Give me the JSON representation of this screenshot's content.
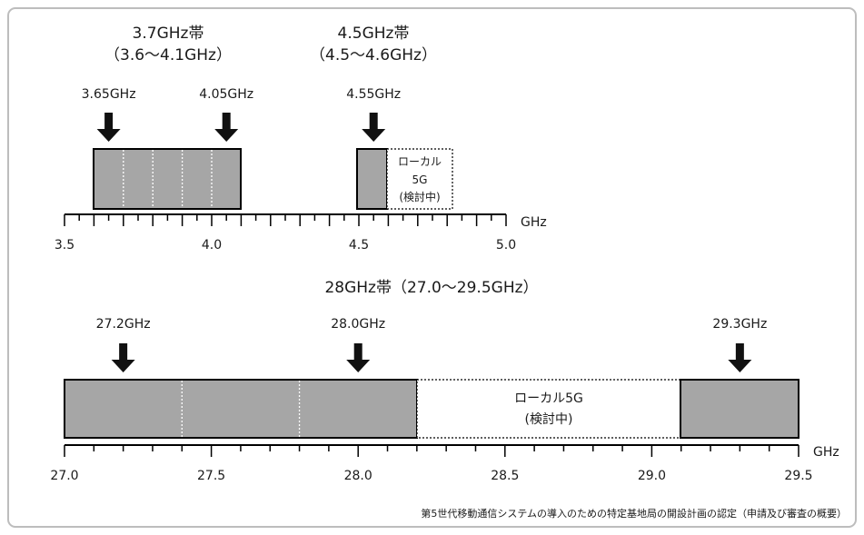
{
  "colors": {
    "band_fill": "#a6a6a6",
    "band_stroke": "#000000",
    "local_fill": "#ffffff",
    "arrow": "#111111",
    "frame": "#bdbdbd"
  },
  "top_panel": {
    "band_37": {
      "title": "3.7GHz帯",
      "range": "（3.6～4.1GHz）",
      "start_ghz": 3.6,
      "end_ghz": 4.1,
      "block_dividers_ghz": [
        3.7,
        3.8,
        3.9,
        4.0
      ]
    },
    "band_45": {
      "title": "4.5GHz帯",
      "range": "（4.5～4.6GHz）",
      "start_ghz": 4.5,
      "end_ghz": 4.6
    },
    "local_5g": {
      "lines": [
        "ローカル",
        "5G",
        "(検討中)"
      ],
      "start_ghz": 4.6,
      "end_ghz": 4.7
    },
    "arrows": [
      {
        "label": "3.65GHz",
        "ghz": 3.65
      },
      {
        "label": "4.05GHz",
        "ghz": 4.05
      },
      {
        "label": "4.55GHz",
        "ghz": 4.55
      }
    ],
    "axis": {
      "min": 3.5,
      "max": 5.0,
      "minor_step": 0.05,
      "major_step": 0.1,
      "labels": [
        "3.5",
        "4.0",
        "4.5",
        "5.0"
      ],
      "unit": "GHz"
    }
  },
  "bottom_panel": {
    "title": "28GHz帯（27.0～29.5GHz）",
    "band_left": {
      "start_ghz": 27.0,
      "end_ghz": 28.2,
      "block_dividers_ghz": [
        27.4,
        27.8
      ]
    },
    "local_5g": {
      "lines": [
        "ローカル5G",
        "(検討中)"
      ],
      "start_ghz": 28.2,
      "end_ghz": 29.1
    },
    "band_right": {
      "start_ghz": 29.1,
      "end_ghz": 29.5
    },
    "arrows": [
      {
        "label": "27.2GHz",
        "ghz": 27.2
      },
      {
        "label": "28.0GHz",
        "ghz": 28.0
      },
      {
        "label": "29.3GHz",
        "ghz": 29.3
      }
    ],
    "axis": {
      "min": 27.0,
      "max": 29.5,
      "minor_step": 0.1,
      "major_step": 0.5,
      "labels": [
        "27.0",
        "27.5",
        "28.0",
        "28.5",
        "29.0",
        "29.5"
      ],
      "unit": "GHz"
    }
  },
  "source_note": "第5世代移動通信システムの導入のための特定基地局の開設計画の認定（申請及び審査の概要）"
}
